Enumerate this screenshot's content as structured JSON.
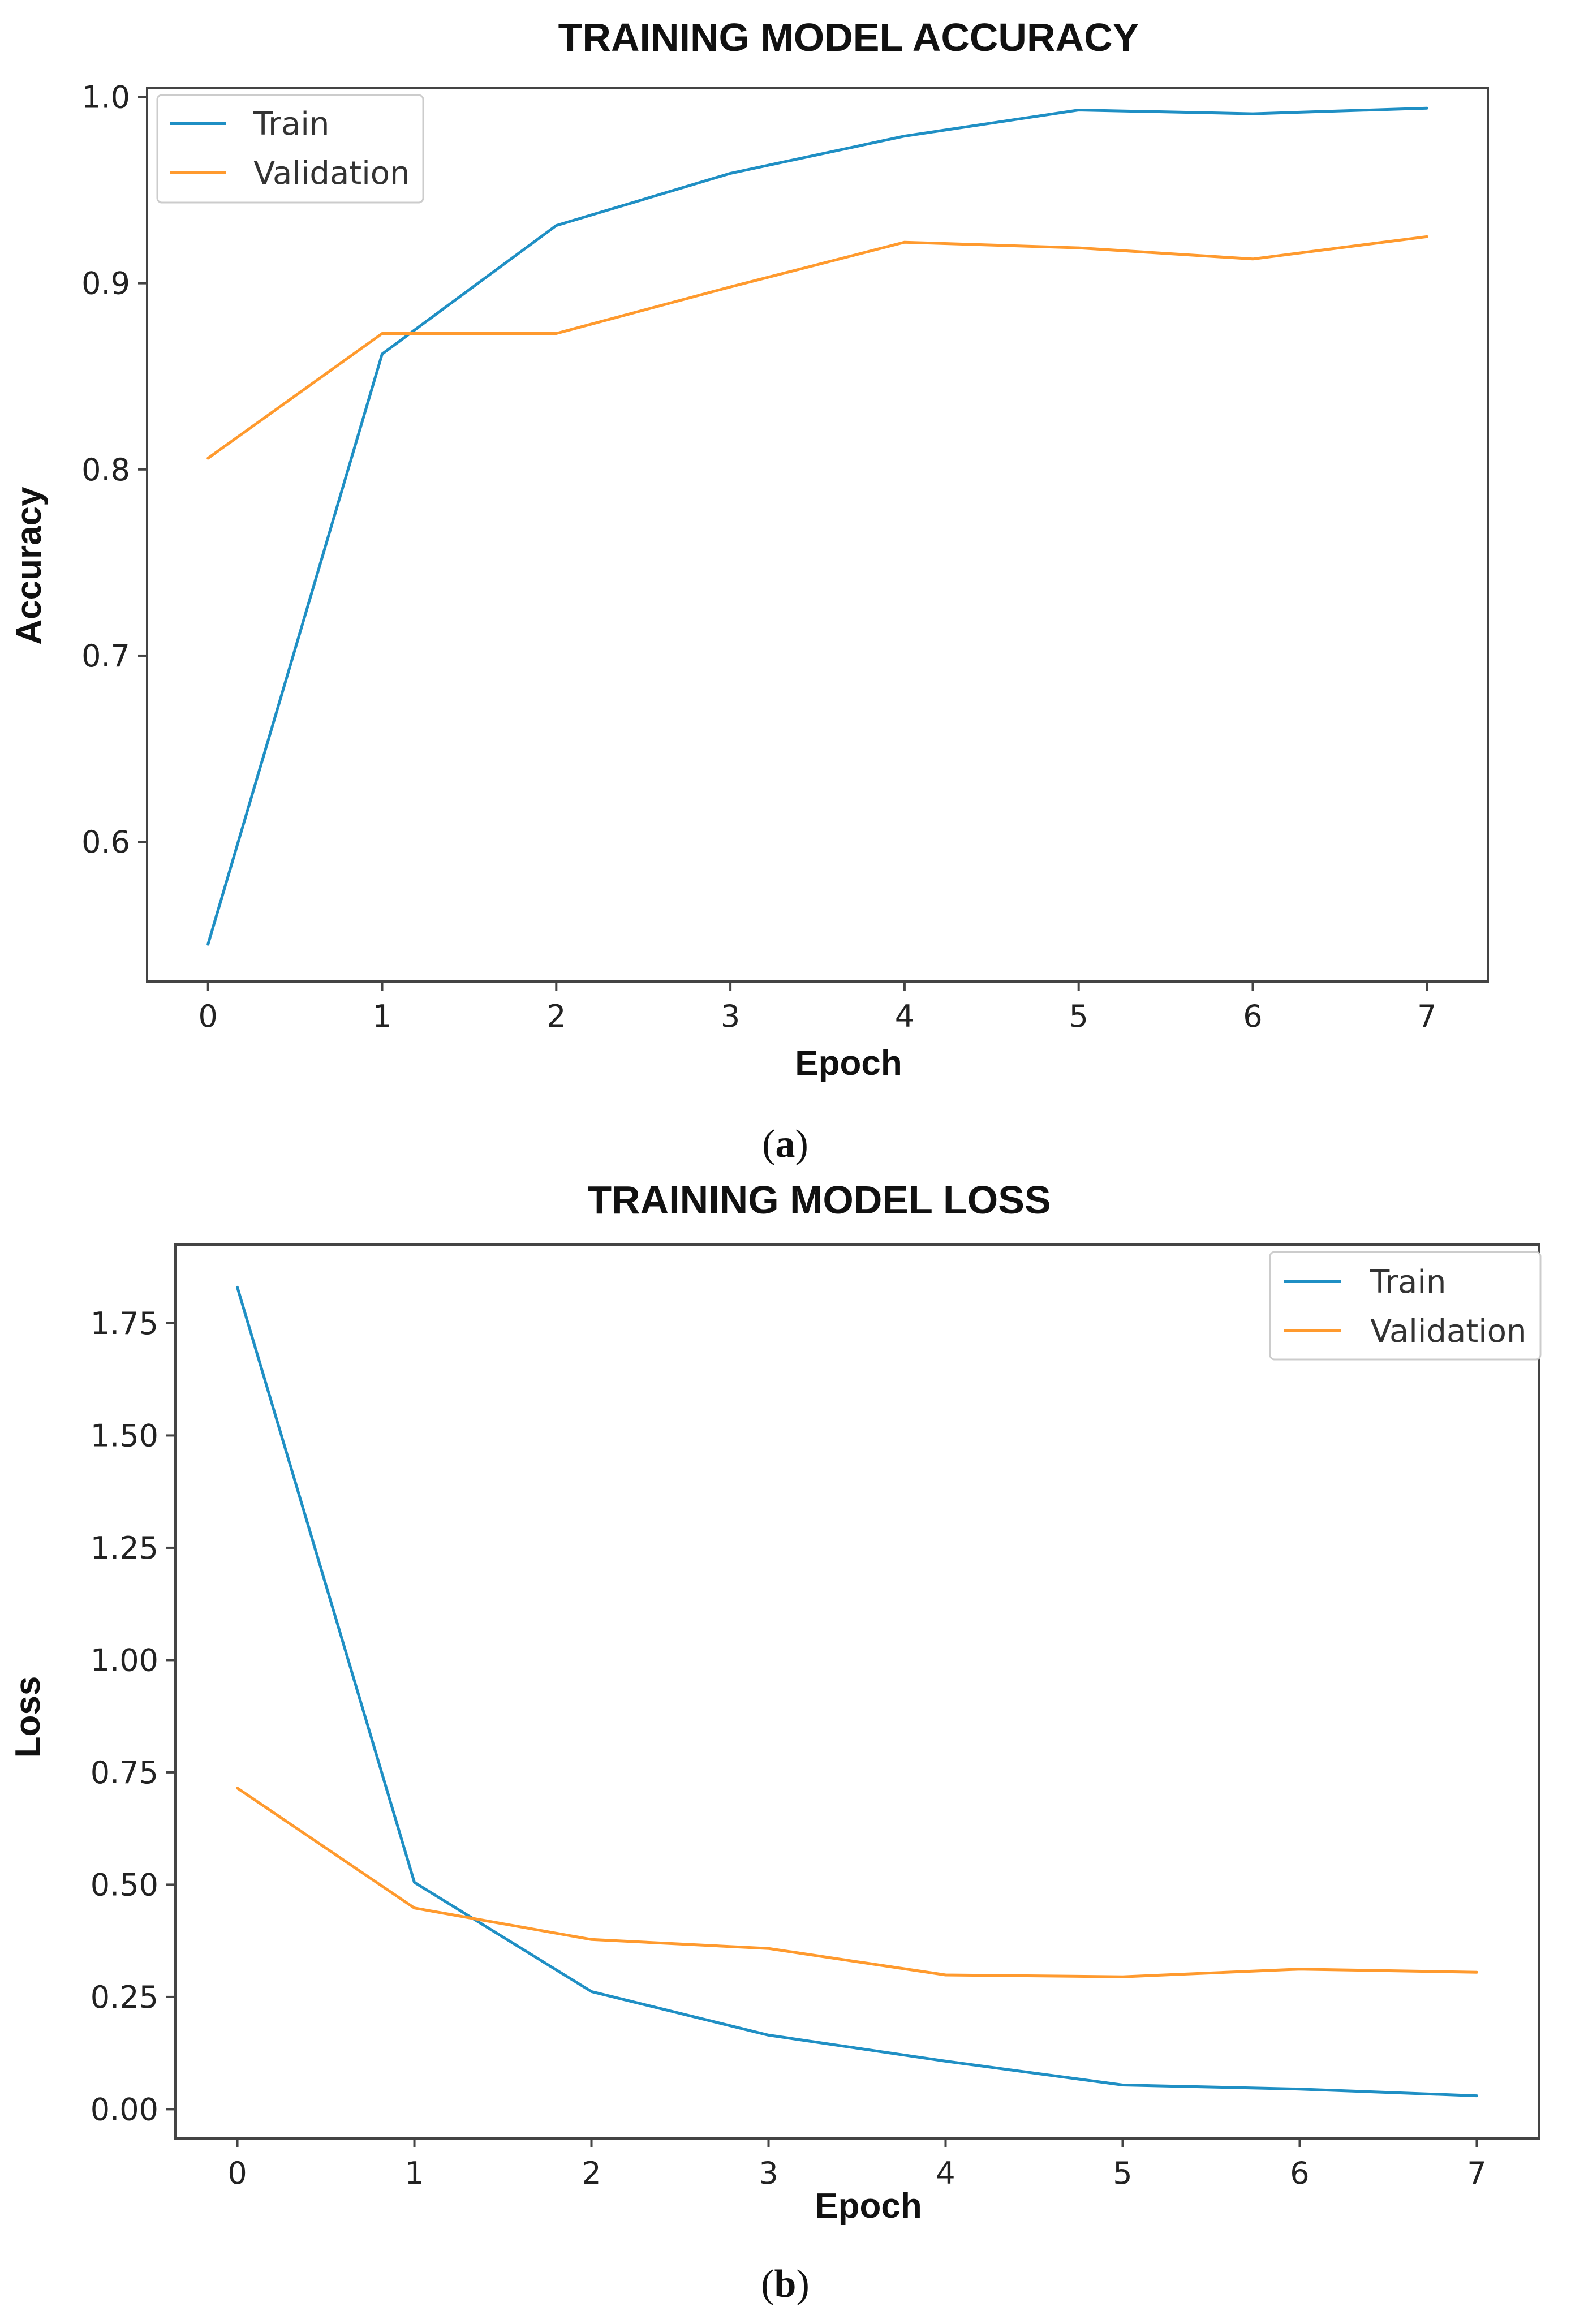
{
  "chart_data": [
    {
      "type": "line",
      "title": "TRAINING MODEL ACCURACY",
      "xlabel": "Epoch",
      "ylabel": "Accuracy",
      "x": [
        0,
        1,
        2,
        3,
        4,
        5,
        6,
        7
      ],
      "xticks": [
        "0",
        "1",
        "2",
        "3",
        "4",
        "5",
        "6",
        "7"
      ],
      "yticks": [
        "0.6",
        "0.7",
        "0.8",
        "0.9",
        "1.0"
      ],
      "ylim": [
        0.525,
        1.005
      ],
      "xlim": [
        -0.35,
        7.35
      ],
      "legend_position": "upper-left",
      "grid": false,
      "caption_open": "(",
      "caption_letter": "a",
      "caption_close": ")",
      "series": [
        {
          "name": "Train",
          "color": "#1f8fc4",
          "values": [
            0.545,
            0.862,
            0.931,
            0.959,
            0.979,
            0.993,
            0.991,
            0.994
          ]
        },
        {
          "name": "Validation",
          "color": "#ff9a2e",
          "values": [
            0.806,
            0.873,
            0.873,
            0.898,
            0.922,
            0.919,
            0.913,
            0.925
          ]
        }
      ]
    },
    {
      "type": "line",
      "title": "TRAINING MODEL LOSS",
      "xlabel": "Epoch",
      "ylabel": "Loss",
      "x": [
        0,
        1,
        2,
        3,
        4,
        5,
        6,
        7
      ],
      "xticks": [
        "0",
        "1",
        "2",
        "3",
        "4",
        "5",
        "6",
        "7"
      ],
      "yticks": [
        "0.00",
        "0.25",
        "0.50",
        "0.75",
        "1.00",
        "1.25",
        "1.50",
        "1.75"
      ],
      "ylim": [
        -0.065,
        1.925
      ],
      "xlim": [
        -0.35,
        7.35
      ],
      "legend_position": "upper-right",
      "grid": false,
      "caption_open": "(",
      "caption_letter": "b",
      "caption_close": ")",
      "series": [
        {
          "name": "Train",
          "color": "#1f8fc4",
          "values": [
            1.83,
            0.505,
            0.262,
            0.165,
            0.107,
            0.054,
            0.045,
            0.03
          ]
        },
        {
          "name": "Validation",
          "color": "#ff9a2e",
          "values": [
            0.715,
            0.448,
            0.378,
            0.358,
            0.299,
            0.295,
            0.312,
            0.305
          ]
        }
      ]
    }
  ]
}
